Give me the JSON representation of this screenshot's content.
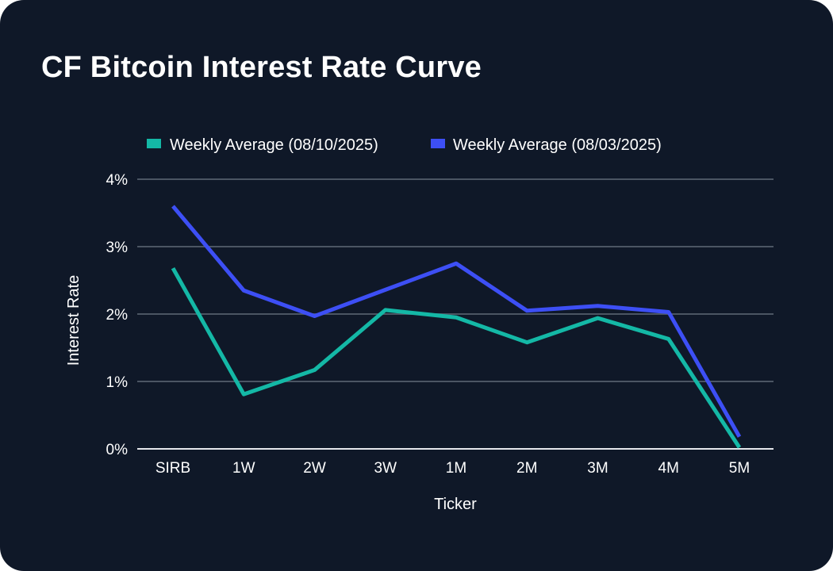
{
  "card": {
    "title": "CF Bitcoin Interest Rate Curve"
  },
  "colors": {
    "background": "#0f1828",
    "grid": "#4b5563",
    "baseline": "#e5e7eb"
  },
  "chart_data": {
    "type": "line",
    "xlabel": "Ticker",
    "ylabel": "Interest Rate",
    "ylim": [
      0,
      4
    ],
    "y_ticks": [
      "0%",
      "1%",
      "2%",
      "3%",
      "4%"
    ],
    "y_tick_values": [
      0,
      1,
      2,
      3,
      4
    ],
    "grid": true,
    "legend_position": "top-center",
    "categories": [
      "SIRB",
      "1W",
      "2W",
      "3W",
      "1M",
      "2M",
      "3M",
      "4M",
      "5M"
    ],
    "series": [
      {
        "name": "Weekly Average (08/10/2025)",
        "color": "#14b8a6",
        "values": [
          2.68,
          0.81,
          1.17,
          2.06,
          1.95,
          1.58,
          1.94,
          1.63,
          0.02
        ]
      },
      {
        "name": "Weekly Average (08/03/2025)",
        "color": "#3d4ff5",
        "values": [
          3.6,
          2.35,
          1.97,
          2.36,
          2.75,
          2.05,
          2.12,
          2.03,
          0.18
        ]
      }
    ]
  }
}
